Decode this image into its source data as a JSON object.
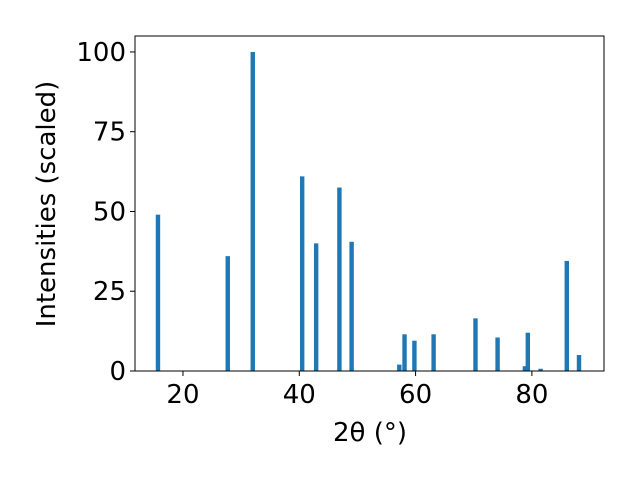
{
  "chart_data": {
    "type": "bar",
    "xlabel": "2θ (°)",
    "ylabel": "Intensities (scaled)",
    "x": [
      15.7,
      27.7,
      32.0,
      40.5,
      42.9,
      46.9,
      49.0,
      57.2,
      58.1,
      59.8,
      63.1,
      70.3,
      74.1,
      78.8,
      79.3,
      81.5,
      86.0,
      88.1
    ],
    "values": [
      49,
      36,
      100,
      61,
      40,
      57.5,
      40.5,
      2,
      11.5,
      9.5,
      11.5,
      16.5,
      10.5,
      1.5,
      12,
      0.7,
      34.5,
      5
    ],
    "color": "#1f77b4",
    "xlim": [
      11.75,
      92.4
    ],
    "xticks": [
      20,
      40,
      60,
      80
    ],
    "ylim": [
      0,
      105
    ],
    "yticks": [
      0,
      25,
      50,
      75,
      100
    ]
  }
}
